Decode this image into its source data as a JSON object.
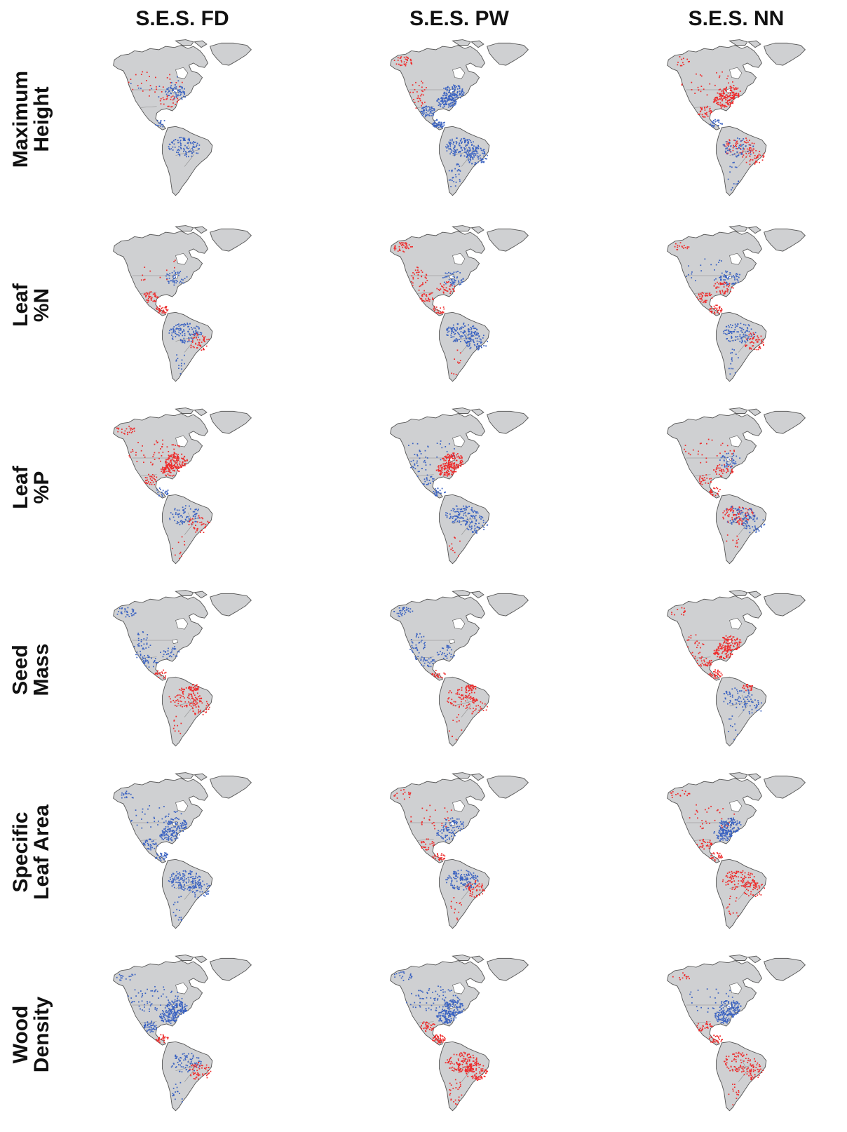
{
  "columns": [
    {
      "id": "fd",
      "title": "S.E.S. FD"
    },
    {
      "id": "pw",
      "title": "S.E.S. PW"
    },
    {
      "id": "nn",
      "title": "S.E.S. NN"
    }
  ],
  "rows": [
    {
      "id": "height",
      "label_lines": [
        "Maximum",
        "Height"
      ]
    },
    {
      "id": "leafn",
      "label_lines": [
        "Leaf",
        "%N"
      ]
    },
    {
      "id": "leafp",
      "label_lines": [
        "Leaf",
        "%P"
      ]
    },
    {
      "id": "seed",
      "label_lines": [
        "Seed",
        "Mass"
      ]
    },
    {
      "id": "sla",
      "label_lines": [
        "Specific",
        "Leaf Area"
      ]
    },
    {
      "id": "wood",
      "label_lines": [
        "Wood",
        "Density"
      ]
    }
  ],
  "colors": {
    "positive": "#ee2b2b",
    "negative": "#3a62c1",
    "land": "#cfd0d2"
  },
  "panels": {
    "height": {
      "fd": [
        [
          "na",
          "r",
          0.35
        ],
        [
          "na",
          "b",
          0.15
        ],
        [
          "ne",
          "b",
          0.55
        ],
        [
          "ca",
          "b",
          0.3
        ],
        [
          "amaz",
          "b",
          0.7
        ],
        [
          "andes",
          "r",
          0.3
        ],
        [
          "se",
          "r",
          0.25
        ]
      ],
      "pw": [
        [
          "alaska",
          "r",
          0.9
        ],
        [
          "west",
          "r",
          0.5
        ],
        [
          "ne",
          "b",
          0.95
        ],
        [
          "se",
          "b",
          0.95
        ],
        [
          "mex",
          "b",
          0.95
        ],
        [
          "ca",
          "b",
          0.95
        ],
        [
          "amaz",
          "b",
          0.95
        ],
        [
          "brazil",
          "b",
          0.9
        ],
        [
          "sc",
          "b",
          0.6
        ]
      ],
      "nn": [
        [
          "alaska",
          "r",
          0.3
        ],
        [
          "na",
          "r",
          0.35
        ],
        [
          "ne",
          "r",
          0.85
        ],
        [
          "se",
          "r",
          0.8
        ],
        [
          "mex",
          "r",
          0.6
        ],
        [
          "ca",
          "b",
          0.5
        ],
        [
          "amaz",
          "r",
          0.4
        ],
        [
          "amaz",
          "b",
          0.4
        ],
        [
          "brazil",
          "r",
          0.45
        ],
        [
          "sc",
          "b",
          0.3
        ]
      ]
    },
    "leafn": {
      "fd": [
        [
          "na",
          "r",
          0.15
        ],
        [
          "ne",
          "b",
          0.4
        ],
        [
          "mex",
          "r",
          0.7
        ],
        [
          "ca",
          "r",
          0.7
        ],
        [
          "amaz",
          "b",
          0.8
        ],
        [
          "brazil",
          "r",
          0.5
        ],
        [
          "sc",
          "b",
          0.25
        ]
      ],
      "pw": [
        [
          "alaska",
          "r",
          0.95
        ],
        [
          "west",
          "r",
          0.6
        ],
        [
          "mex",
          "r",
          0.5
        ],
        [
          "ne",
          "b",
          0.45
        ],
        [
          "se",
          "r",
          0.3
        ],
        [
          "ca",
          "r",
          0.4
        ],
        [
          "amaz",
          "b",
          0.95
        ],
        [
          "brazil",
          "b",
          0.6
        ],
        [
          "sc",
          "r",
          0.2
        ]
      ],
      "nn": [
        [
          "alaska",
          "r",
          0.4
        ],
        [
          "na",
          "b",
          0.25
        ],
        [
          "ne",
          "b",
          0.5
        ],
        [
          "se",
          "r",
          0.45
        ],
        [
          "mex",
          "r",
          0.6
        ],
        [
          "ca",
          "r",
          0.7
        ],
        [
          "amaz",
          "b",
          0.7
        ],
        [
          "brazil",
          "r",
          0.6
        ],
        [
          "sc",
          "b",
          0.3
        ]
      ]
    },
    "leafp": {
      "fd": [
        [
          "alaska",
          "r",
          0.6
        ],
        [
          "na",
          "r",
          0.6
        ],
        [
          "ne",
          "r",
          0.95
        ],
        [
          "se",
          "r",
          0.9
        ],
        [
          "mex",
          "r",
          0.5
        ],
        [
          "ca",
          "b",
          0.4
        ],
        [
          "amaz",
          "b",
          0.5
        ],
        [
          "brazil",
          "r",
          0.45
        ],
        [
          "sc",
          "r",
          0.2
        ]
      ],
      "pw": [
        [
          "west",
          "b",
          0.45
        ],
        [
          "na",
          "b",
          0.3
        ],
        [
          "ne",
          "r",
          0.98
        ],
        [
          "se",
          "r",
          0.98
        ],
        [
          "mex",
          "b",
          0.35
        ],
        [
          "ca",
          "b",
          0.45
        ],
        [
          "amaz",
          "b",
          0.75
        ],
        [
          "brazil",
          "b",
          0.55
        ],
        [
          "sc",
          "r",
          0.2
        ]
      ],
      "nn": [
        [
          "na",
          "r",
          0.35
        ],
        [
          "ne",
          "b",
          0.4
        ],
        [
          "se",
          "r",
          0.4
        ],
        [
          "mex",
          "r",
          0.4
        ],
        [
          "ca",
          "r",
          0.4
        ],
        [
          "amaz",
          "r",
          0.65
        ],
        [
          "amaz",
          "b",
          0.45
        ],
        [
          "brazil",
          "b",
          0.45
        ],
        [
          "sc",
          "r",
          0.2
        ]
      ]
    },
    "seed": {
      "fd": [
        [
          "alaska",
          "b",
          0.8
        ],
        [
          "west",
          "b",
          0.7
        ],
        [
          "mex",
          "b",
          0.45
        ],
        [
          "se",
          "b",
          0.3
        ],
        [
          "ca",
          "r",
          0.4
        ],
        [
          "guiana",
          "r",
          0.9
        ],
        [
          "amaz",
          "r",
          0.55
        ],
        [
          "brazil",
          "r",
          0.45
        ],
        [
          "sc",
          "r",
          0.2
        ]
      ],
      "pw": [
        [
          "alaska",
          "b",
          0.8
        ],
        [
          "west",
          "b",
          0.7
        ],
        [
          "mex",
          "b",
          0.45
        ],
        [
          "se",
          "b",
          0.3
        ],
        [
          "ca",
          "r",
          0.4
        ],
        [
          "guiana",
          "r",
          0.9
        ],
        [
          "amaz",
          "r",
          0.5
        ],
        [
          "brazil",
          "r",
          0.4
        ],
        [
          "sc",
          "r",
          0.2
        ]
      ],
      "nn": [
        [
          "alaska",
          "r",
          0.3
        ],
        [
          "west",
          "r",
          0.4
        ],
        [
          "ne",
          "r",
          0.85
        ],
        [
          "se",
          "r",
          0.85
        ],
        [
          "mex",
          "r",
          0.55
        ],
        [
          "ca",
          "r",
          0.6
        ],
        [
          "guiana",
          "r",
          0.6
        ],
        [
          "amaz",
          "b",
          0.45
        ],
        [
          "brazil",
          "b",
          0.3
        ],
        [
          "sc",
          "b",
          0.2
        ]
      ]
    },
    "sla": {
      "fd": [
        [
          "alaska",
          "b",
          0.4
        ],
        [
          "na",
          "b",
          0.45
        ],
        [
          "ne",
          "b",
          0.7
        ],
        [
          "se",
          "b",
          0.7
        ],
        [
          "mex",
          "b",
          0.6
        ],
        [
          "ca",
          "b",
          0.6
        ],
        [
          "amaz",
          "b",
          0.95
        ],
        [
          "brazil",
          "b",
          0.6
        ],
        [
          "sc",
          "b",
          0.3
        ]
      ],
      "pw": [
        [
          "alaska",
          "r",
          0.4
        ],
        [
          "na",
          "r",
          0.35
        ],
        [
          "ne",
          "b",
          0.5
        ],
        [
          "se",
          "b",
          0.4
        ],
        [
          "mex",
          "r",
          0.4
        ],
        [
          "ca",
          "r",
          0.5
        ],
        [
          "amaz",
          "b",
          0.95
        ],
        [
          "brazil",
          "r",
          0.55
        ],
        [
          "sc",
          "r",
          0.25
        ]
      ],
      "nn": [
        [
          "alaska",
          "r",
          0.4
        ],
        [
          "na",
          "r",
          0.4
        ],
        [
          "ne",
          "b",
          0.95
        ],
        [
          "se",
          "b",
          0.85
        ],
        [
          "mex",
          "r",
          0.5
        ],
        [
          "ca",
          "r",
          0.5
        ],
        [
          "amaz",
          "r",
          0.7
        ],
        [
          "brazil",
          "r",
          0.6
        ],
        [
          "sc",
          "r",
          0.25
        ]
      ]
    },
    "wood": {
      "fd": [
        [
          "alaska",
          "b",
          0.4
        ],
        [
          "na",
          "b",
          0.9
        ],
        [
          "ne",
          "b",
          0.98
        ],
        [
          "se",
          "b",
          0.98
        ],
        [
          "mex",
          "b",
          0.85
        ],
        [
          "ca",
          "r",
          0.6
        ],
        [
          "amaz",
          "b",
          0.55
        ],
        [
          "brazil",
          "r",
          0.6
        ],
        [
          "sc",
          "b",
          0.3
        ]
      ],
      "pw": [
        [
          "alaska",
          "b",
          0.5
        ],
        [
          "na",
          "b",
          0.9
        ],
        [
          "ne",
          "b",
          0.98
        ],
        [
          "se",
          "b",
          0.98
        ],
        [
          "mex",
          "r",
          0.6
        ],
        [
          "ca",
          "r",
          0.95
        ],
        [
          "amaz",
          "r",
          0.95
        ],
        [
          "brazil",
          "r",
          0.98
        ],
        [
          "sc",
          "r",
          0.5
        ]
      ],
      "nn": [
        [
          "alaska",
          "r",
          0.3
        ],
        [
          "na",
          "b",
          0.3
        ],
        [
          "ne",
          "b",
          0.9
        ],
        [
          "se",
          "b",
          0.8
        ],
        [
          "mex",
          "r",
          0.5
        ],
        [
          "ca",
          "r",
          0.55
        ],
        [
          "amaz",
          "r",
          0.55
        ],
        [
          "brazil",
          "r",
          0.55
        ],
        [
          "sc",
          "r",
          0.25
        ]
      ]
    }
  }
}
